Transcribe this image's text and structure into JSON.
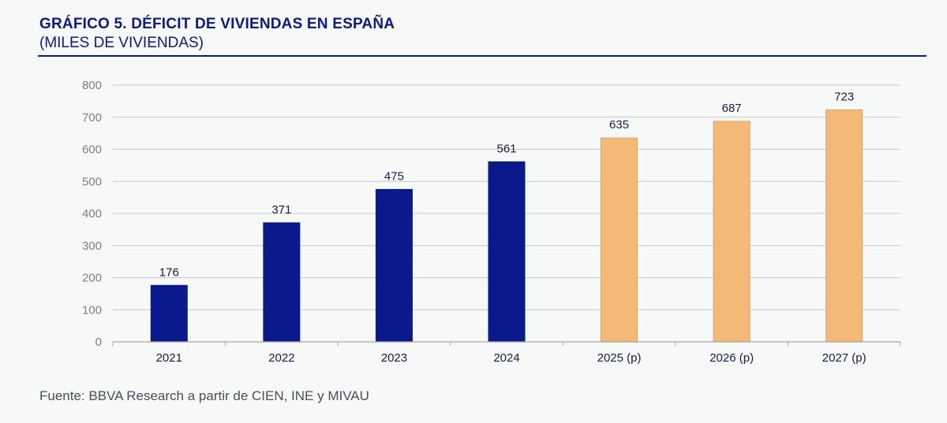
{
  "header": {
    "title": "GRÁFICO 5. DÉFICIT DE VIVIENDAS EN ESPAÑA",
    "subtitle": "(MILES DE VIVIENDAS)"
  },
  "footer": {
    "source": "Fuente: BBVA Research a partir de CIEN, INE y MIVAU"
  },
  "colors": {
    "actual": "#0a1a8c",
    "projected": "#f5b977",
    "grid": "#c8c8c8",
    "axis": "#a6a6a6"
  },
  "chart_data": {
    "type": "bar",
    "title": "GRÁFICO 5. DÉFICIT DE VIVIENDAS EN ESPAÑA",
    "subtitle": "(MILES DE VIVIENDAS)",
    "categories": [
      "2021",
      "2022",
      "2023",
      "2024",
      "2025 (p)",
      "2026 (p)",
      "2027 (p)"
    ],
    "values": [
      176,
      371,
      475,
      561,
      635,
      687,
      723
    ],
    "projected": [
      false,
      false,
      false,
      false,
      true,
      true,
      true
    ],
    "data_labels": [
      "176",
      "371",
      "475",
      "561",
      "635",
      "687",
      "723"
    ],
    "ylim": [
      0,
      800
    ],
    "yticks": [
      "0",
      "100",
      "200",
      "300",
      "400",
      "500",
      "600",
      "700",
      "800"
    ],
    "grid": true,
    "legend": "none",
    "xlabel": "",
    "ylabel": ""
  }
}
